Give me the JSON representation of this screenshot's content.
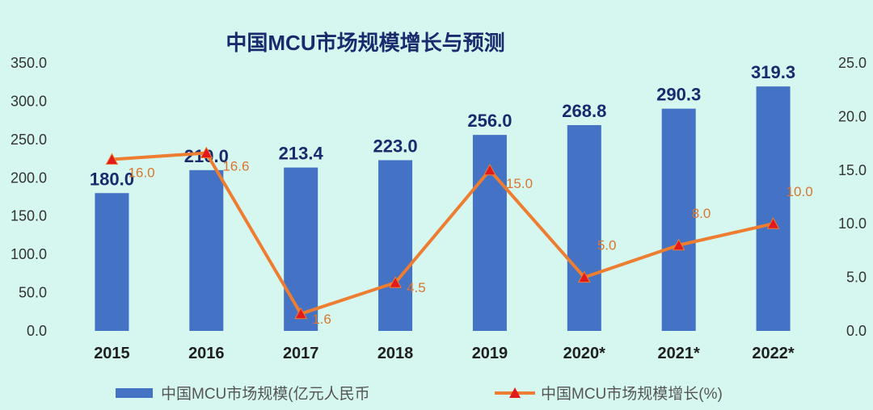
{
  "chart_data": {
    "type": "bar",
    "title": "中国MCU市场规模增长与预测",
    "categories": [
      "2015",
      "2016",
      "2017",
      "2018",
      "2019",
      "2020*",
      "2021*",
      "2022*"
    ],
    "series": [
      {
        "name": "中国MCU市场规模(亿元人民币",
        "kind": "bar",
        "axis": "left",
        "values": [
          180.0,
          210.0,
          213.4,
          223.0,
          256.0,
          268.8,
          290.3,
          319.3
        ],
        "labels": [
          "180.0",
          "210.0",
          "213.4",
          "223.0",
          "256.0",
          "268.8",
          "290.3",
          "319.3"
        ],
        "color": "#4472c4"
      },
      {
        "name": "中国MCU市场规模增长(%)",
        "kind": "line",
        "axis": "right",
        "values": [
          16.0,
          16.6,
          1.6,
          4.5,
          15.0,
          5.0,
          8.0,
          10.0
        ],
        "labels": [
          "16.0",
          "16.6",
          "1.6",
          "4.5",
          "15.0",
          "5.0",
          "8.0",
          "10.0"
        ],
        "color": "#ed7d31",
        "marker_color": "#e31a1c"
      }
    ],
    "y_left": {
      "range": [
        0,
        350
      ],
      "ticks": [
        "0.0",
        "50.0",
        "100.0",
        "150.0",
        "200.0",
        "250.0",
        "300.0",
        "350.0"
      ]
    },
    "y_right": {
      "range": [
        0,
        25
      ],
      "ticks": [
        "0.0",
        "5.0",
        "10.0",
        "15.0",
        "20.0",
        "25.0"
      ]
    },
    "grid": false,
    "legend": "bottom"
  }
}
